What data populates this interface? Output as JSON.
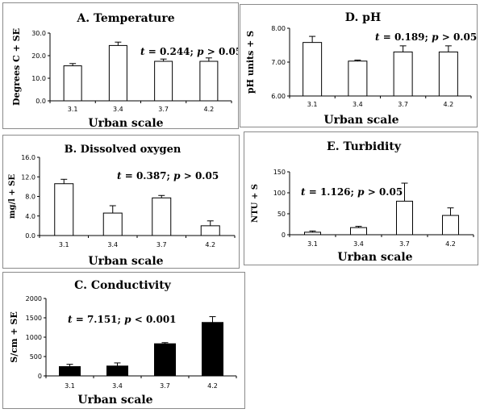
{
  "chart_data": [
    {
      "id": "A",
      "type": "bar",
      "title": "A. Temperature",
      "xlabel": "Urban scale",
      "ylabel": "Degrees C + SE",
      "categories": [
        "3.1",
        "3.4",
        "3.7",
        "4.2"
      ],
      "values": [
        15.5,
        24.5,
        17.5,
        17.5
      ],
      "errors": [
        1.0,
        1.5,
        1.0,
        1.5
      ],
      "ylim": [
        0,
        30
      ],
      "yticks": [
        "0.0",
        "10.0",
        "20.0",
        "30.0"
      ],
      "ytick_values": [
        0,
        10,
        20,
        30
      ],
      "bar_color": "#ffffff",
      "stat_t": "0.244",
      "stat_rel": ">",
      "stat_p": "0.05"
    },
    {
      "id": "D",
      "type": "bar",
      "title": "D. pH",
      "xlabel": "Urban scale",
      "ylabel": "pH units + S",
      "categories": [
        "3.1",
        "3.4",
        "3.7",
        "4.2"
      ],
      "values": [
        7.58,
        7.03,
        7.3,
        7.3
      ],
      "errors": [
        0.18,
        0.03,
        0.18,
        0.18
      ],
      "ylim": [
        6.0,
        8.0
      ],
      "yticks": [
        "6.00",
        "7.00",
        "8.00"
      ],
      "ytick_values": [
        6,
        7,
        8
      ],
      "bar_color": "#ffffff",
      "stat_t": "0.189",
      "stat_rel": ">",
      "stat_p": "0.05"
    },
    {
      "id": "B",
      "type": "bar",
      "title": "B. Dissolved oxygen",
      "xlabel": "Urban scale",
      "ylabel": "mg/l + SE",
      "categories": [
        "3.1",
        "3.4",
        "3.7",
        "4.2"
      ],
      "values": [
        10.6,
        4.6,
        7.7,
        2.0
      ],
      "errors": [
        0.9,
        1.5,
        0.5,
        1.0
      ],
      "ylim": [
        0,
        16
      ],
      "yticks": [
        "0.0",
        "4.0",
        "8.0",
        "12.0",
        "16.0"
      ],
      "ytick_values": [
        0,
        4,
        8,
        12,
        16
      ],
      "bar_color": "#ffffff",
      "stat_t": "0.387",
      "stat_rel": ">",
      "stat_p": "0.05"
    },
    {
      "id": "E",
      "type": "bar",
      "title": "E. Turbidity",
      "xlabel": "Urban scale",
      "ylabel": "NTU + S",
      "categories": [
        "3.1",
        "3.4",
        "3.7",
        "4.2"
      ],
      "values": [
        6,
        17,
        80,
        46
      ],
      "errors": [
        3,
        3,
        43,
        18
      ],
      "ylim": [
        0,
        150
      ],
      "yticks": [
        "0",
        "50",
        "100",
        "150"
      ],
      "ytick_values": [
        0,
        50,
        100,
        150
      ],
      "bar_color": "#ffffff",
      "stat_t": "1.126",
      "stat_rel": ">",
      "stat_p": "0.05"
    },
    {
      "id": "C",
      "type": "bar",
      "title": "C. Conductivity",
      "xlabel": "Urban scale",
      "ylabel": "S/cm + SE",
      "categories": [
        "3.1",
        "3.4",
        "3.7",
        "4.2"
      ],
      "values": [
        240,
        255,
        830,
        1380
      ],
      "errors": [
        60,
        80,
        30,
        150
      ],
      "ylim": [
        0,
        2000
      ],
      "yticks": [
        "0",
        "500",
        "1000",
        "1500",
        "2000"
      ],
      "ytick_values": [
        0,
        500,
        1000,
        1500,
        2000
      ],
      "bar_color": "#000000",
      "stat_t": "7.151",
      "stat_rel": "<",
      "stat_p": "0.001"
    }
  ]
}
